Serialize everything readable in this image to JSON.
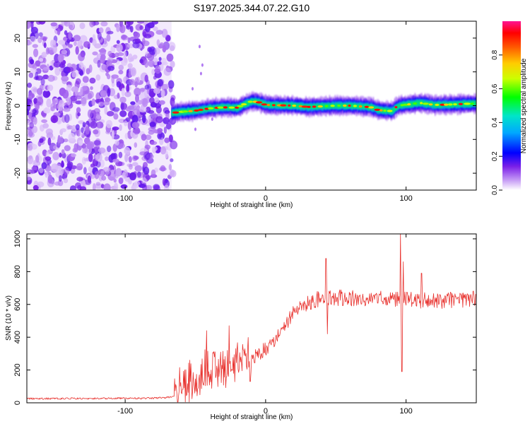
{
  "title": "S197.2025.344.07.22.G10",
  "chart_data": [
    {
      "type": "heatmap",
      "name": "spectrogram",
      "xlabel": "Height of straight line (km)",
      "ylabel": "Frequency (Hz)",
      "xlim": [
        -170,
        150
      ],
      "ylim": [
        -25,
        25
      ],
      "xticks": [
        -100,
        0,
        100
      ],
      "yticks": [
        -20,
        -10,
        0,
        10,
        20
      ],
      "noise_region_end": -67,
      "colorbar": {
        "label": "Normalized spectral amplitude",
        "ticks": [
          0.0,
          0.2,
          0.4,
          0.6,
          0.8
        ],
        "ticklabels": [
          "0.0",
          "0.2",
          "0.4",
          "0.6",
          "0.8"
        ],
        "range": [
          0,
          1
        ]
      },
      "ridge": {
        "x": [
          -67,
          -60,
          -50,
          -40,
          -30,
          -20,
          -15,
          -10,
          -5,
          0,
          10,
          20,
          30,
          40,
          50,
          60,
          70,
          75,
          80,
          85,
          90,
          92,
          95,
          100,
          110,
          120,
          130,
          140,
          150
        ],
        "freq": [
          -2.2,
          -1.8,
          -1.5,
          -0.8,
          -0.5,
          -0.6,
          0.5,
          1.3,
          1.0,
          0.2,
          0.1,
          0.0,
          -0.4,
          -0.2,
          0.0,
          0.0,
          -0.3,
          -0.5,
          -1.3,
          -1.5,
          -1.6,
          -0.6,
          0.0,
          0.3,
          0.8,
          0.2,
          0.3,
          0.5,
          0.6
        ]
      }
    },
    {
      "type": "line",
      "name": "snr",
      "xlabel": "Height of straight line (km)",
      "ylabel": "SNR (10 * v/v)",
      "xlim": [
        -170,
        150
      ],
      "ylim": [
        0,
        1030
      ],
      "xticks": [
        -100,
        0,
        100
      ],
      "yticks": [
        0,
        200,
        400,
        600,
        800,
        1000
      ],
      "color": "#e8322e",
      "trend": {
        "x": [
          -170,
          -80,
          -65,
          -60,
          -55,
          -50,
          -40,
          -30,
          -20,
          -10,
          0,
          10,
          20,
          30,
          40,
          50,
          60,
          70,
          80,
          90,
          95,
          100,
          110,
          120,
          130,
          140,
          150
        ],
        "y": [
          25,
          28,
          35,
          90,
          120,
          150,
          190,
          210,
          240,
          270,
          330,
          420,
          550,
          610,
          640,
          640,
          640,
          630,
          630,
          640,
          630,
          630,
          625,
          620,
          625,
          630,
          640
        ]
      },
      "peaks": [
        {
          "x": 43,
          "y": 880
        },
        {
          "x": 44,
          "y": 420
        },
        {
          "x": 96,
          "y": 1030
        },
        {
          "x": 97,
          "y": 190
        },
        {
          "x": 98,
          "y": 860
        },
        {
          "x": 111,
          "y": 790
        },
        {
          "x": -42,
          "y": 440
        },
        {
          "x": -26,
          "y": 470
        },
        {
          "x": -11,
          "y": 130
        }
      ]
    }
  ]
}
